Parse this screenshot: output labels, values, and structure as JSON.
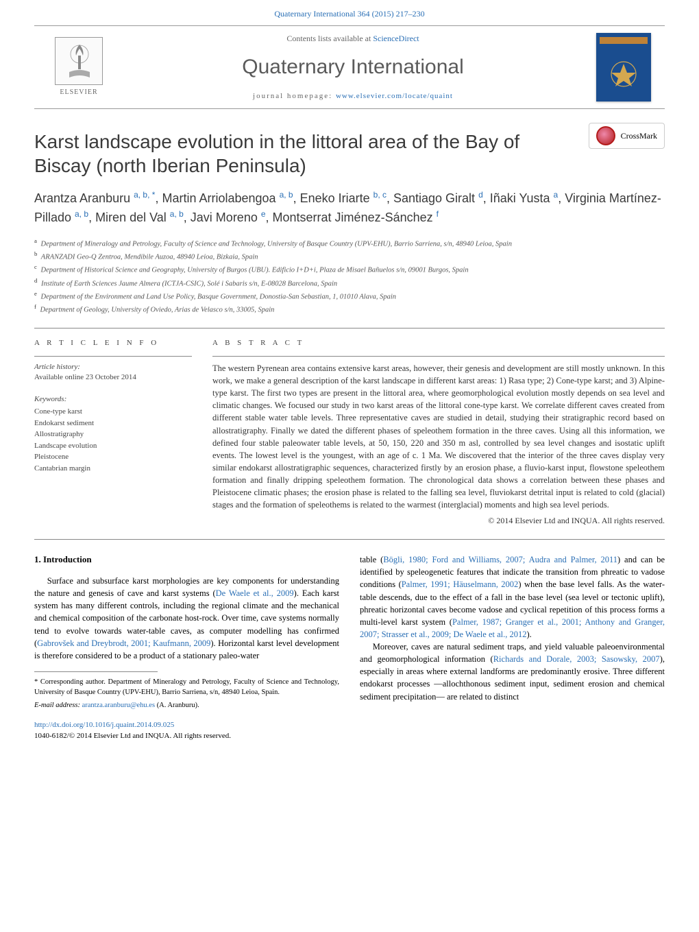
{
  "topLink": "Quaternary International 364 (2015) 217–230",
  "header": {
    "contentsPrefix": "Contents lists available at ",
    "contentsLinkText": "ScienceDirect",
    "journalName": "Quaternary International",
    "homepagePrefix": "journal homepage: ",
    "homepageUrl": "www.elsevier.com/locate/quaint",
    "publisherName": "ELSEVIER"
  },
  "crossmark": "CrossMark",
  "article": {
    "title": "Karst landscape evolution in the littoral area of the Bay of Biscay (north Iberian Peninsula)",
    "authorsHtml": "Arantza Aranburu <sup>a, b, *</sup>, Martin Arriolabengoa <sup>a, b</sup>, Eneko Iriarte <sup>b, c</sup>, Santiago Giralt <sup>d</sup>, Iñaki Yusta <sup>a</sup>, Virginia Martínez-Pillado <sup>a, b</sup>, Miren del Val <sup>a, b</sup>, Javi Moreno <sup>e</sup>, Montserrat Jiménez-Sánchez <sup>f</sup>",
    "affiliations": [
      {
        "sup": "a",
        "text": "Department of Mineralogy and Petrology, Faculty of Science and Technology, University of Basque Country (UPV-EHU), Barrio Sarriena, s/n, 48940 Leioa, Spain"
      },
      {
        "sup": "b",
        "text": "ARANZADI Geo-Q Zentroa, Mendibile Auzoa, 48940 Leioa, Bizkaia, Spain"
      },
      {
        "sup": "c",
        "text": "Department of Historical Science and Geography, University of Burgos (UBU). Edificio I+D+i, Plaza de Misael Bañuelos s/n, 09001 Burgos, Spain"
      },
      {
        "sup": "d",
        "text": "Institute of Earth Sciences Jaume Almera (ICTJA-CSIC), Solé i Sabaris s/n, E-08028 Barcelona, Spain"
      },
      {
        "sup": "e",
        "text": "Department of the Environment and Land Use Policy, Basque Government, Donostia-San Sebastian, 1, 01010 Alava, Spain"
      },
      {
        "sup": "f",
        "text": "Department of Geology, University of Oviedo, Arias de Velasco s/n, 33005, Spain"
      }
    ]
  },
  "info": {
    "sectionLabel": "A R T I C L E   I N F O",
    "historyLabel": "Article history:",
    "historyText": "Available online 23 October 2014",
    "keywordsLabel": "Keywords:",
    "keywords": [
      "Cone-type karst",
      "Endokarst sediment",
      "Allostratigraphy",
      "Landscape evolution",
      "Pleistocene",
      "Cantabrian margin"
    ]
  },
  "abstract": {
    "sectionLabel": "A B S T R A C T",
    "text": "The western Pyrenean area contains extensive karst areas, however, their genesis and development are still mostly unknown. In this work, we make a general description of the karst landscape in different karst areas: 1) Rasa type; 2) Cone-type karst; and 3) Alpine-type karst. The first two types are present in the littoral area, where geomorphological evolution mostly depends on sea level and climatic changes. We focused our study in two karst areas of the littoral cone-type karst. We correlate different caves created from different stable water table levels. Three representative caves are studied in detail, studying their stratigraphic record based on allostratigraphy. Finally we dated the different phases of speleothem formation in the three caves. Using all this information, we defined four stable paleowater table levels, at 50, 150, 220 and 350 m asl, controlled by sea level changes and isostatic uplift events. The lowest level is the youngest, with an age of c. 1 Ma. We discovered that the interior of the three caves display very similar endokarst allostratigraphic sequences, characterized firstly by an erosion phase, a fluvio-karst input, flowstone speleothem formation and finally dripping speleothem formation. The chronological data shows a correlation between these phases and Pleistocene climatic phases; the erosion phase is related to the falling sea level, fluviokarst detrital input is related to cold (glacial) stages and the formation of speleothems is related to the warmest (interglacial) moments and high sea level periods.",
    "copyright": "© 2014 Elsevier Ltd and INQUA. All rights reserved."
  },
  "body": {
    "sectionHeading": "1. Introduction",
    "leftCol": "Surface and subsurface karst morphologies are key components for understanding the nature and genesis of cave and karst systems (<span class=\"cite\">De Waele et al., 2009</span>). Each karst system has many different controls, including the regional climate and the mechanical and chemical composition of the carbonate host-rock. Over time, cave systems normally tend to evolve towards water-table caves, as computer modelling has confirmed (<span class=\"cite\">Gabrovšek and Dreybrodt, 2001; Kaufmann, 2009</span>). Horizontal karst level development is therefore considered to be a product of a stationary paleo-water",
    "rightColP1": "table (<span class=\"cite\">Bögli, 1980; Ford and Williams, 2007; Audra and Palmer, 2011</span>) and can be identified by speleogenetic features that indicate the transition from phreatic to vadose conditions (<span class=\"cite\">Palmer, 1991; Häuselmann, 2002</span>) when the base level falls. As the water-table descends, due to the effect of a fall in the base level (sea level or tectonic uplift), phreatic horizontal caves become vadose and cyclical repetition of this process forms a multi-level karst system (<span class=\"cite\">Palmer, 1987; Granger et al., 2001; Anthony and Granger, 2007; Strasser et al., 2009; De Waele et al., 2012</span>).",
    "rightColP2": "Moreover, caves are natural sediment traps, and yield valuable paleoenvironmental and geomorphological information (<span class=\"cite\">Richards and Dorale, 2003; Sasowsky, 2007</span>), especially in areas where external landforms are predominantly erosive. Three different endokarst processes —allochthonous sediment input, sediment erosion and chemical sediment precipitation— are related to distinct"
  },
  "footer": {
    "correspondence": "* Corresponding author. Department of Mineralogy and Petrology, Faculty of Science and Technology, University of Basque Country (UPV-EHU), Barrio Sarriena, s/n, 48940 Leioa, Spain.",
    "emailLabel": "E-mail address: ",
    "email": "arantza.aranburu@ehu.es",
    "emailSuffix": " (A. Aranburu).",
    "doiUrl": "http://dx.doi.org/10.1016/j.quaint.2014.09.025",
    "issn": "1040-6182/© 2014 Elsevier Ltd and INQUA. All rights reserved."
  }
}
